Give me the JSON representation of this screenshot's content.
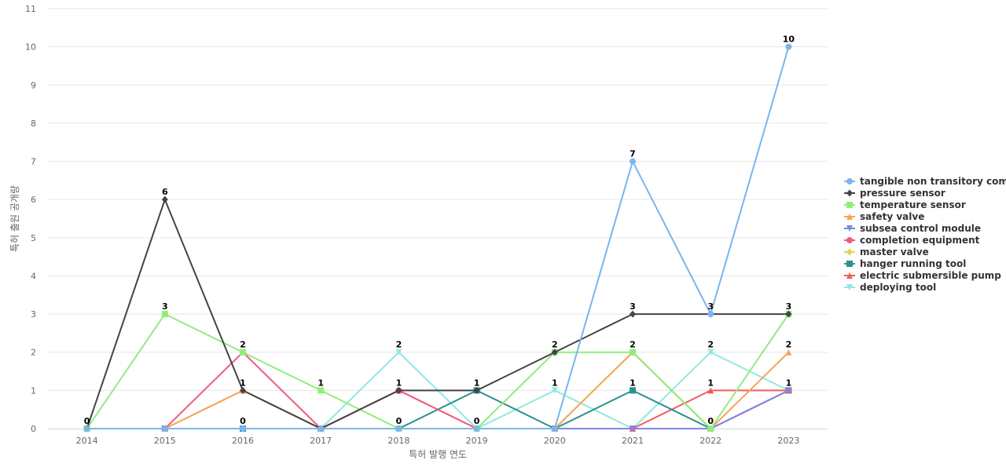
{
  "chart_data": {
    "type": "line",
    "xlabel": "특허 발행 연도",
    "ylabel": "특허 출원 공개량",
    "ylim": [
      0,
      11
    ],
    "yticks": [
      0,
      1,
      2,
      3,
      4,
      5,
      6,
      7,
      8,
      9,
      10,
      11
    ],
    "categories": [
      "2014",
      "2015",
      "2016",
      "2017",
      "2018",
      "2019",
      "2020",
      "2021",
      "2022",
      "2023"
    ],
    "grid": true,
    "legend_position": "right",
    "series": [
      {
        "name": "tangible non transitory com...",
        "color": "#7cb5ec",
        "marker": "circle",
        "values": [
          0,
          0,
          0,
          0,
          0,
          0,
          0,
          7,
          3,
          10
        ],
        "labels": [
          false,
          false,
          false,
          false,
          false,
          false,
          false,
          true,
          true,
          true
        ]
      },
      {
        "name": "pressure sensor",
        "color": "#434348",
        "marker": "diamond",
        "values": [
          0,
          6,
          1,
          0,
          1,
          1,
          2,
          3,
          3,
          3
        ],
        "labels": [
          true,
          true,
          false,
          false,
          false,
          true,
          false,
          true,
          false,
          false
        ]
      },
      {
        "name": "temperature sensor",
        "color": "#90ed7d",
        "marker": "square",
        "values": [
          0,
          3,
          2,
          1,
          0,
          0,
          2,
          2,
          0,
          3
        ],
        "labels": [
          false,
          true,
          true,
          true,
          false,
          false,
          true,
          false,
          false,
          true
        ]
      },
      {
        "name": "safety valve",
        "color": "#f7a35c",
        "marker": "triangle",
        "values": [
          0,
          0,
          1,
          0,
          0,
          0,
          0,
          2,
          0,
          2
        ],
        "labels": [
          false,
          false,
          false,
          false,
          false,
          false,
          false,
          false,
          false,
          true
        ]
      },
      {
        "name": "subsea control module",
        "color": "#8085e9",
        "marker": "triangle-down",
        "values": [
          0,
          0,
          0,
          0,
          0,
          0,
          0,
          0,
          0,
          1
        ],
        "labels": [
          false,
          false,
          false,
          false,
          false,
          false,
          false,
          false,
          false,
          false
        ]
      },
      {
        "name": "completion equipment",
        "color": "#f15c80",
        "marker": "circle",
        "values": [
          0,
          0,
          2,
          0,
          1,
          0,
          0,
          0,
          0,
          1
        ],
        "labels": [
          false,
          false,
          false,
          false,
          false,
          false,
          false,
          false,
          false,
          false
        ]
      },
      {
        "name": "master valve",
        "color": "#e4d354",
        "marker": "diamond",
        "values": [
          0,
          0,
          1,
          0,
          0,
          0,
          0,
          2,
          0,
          1
        ],
        "labels": [
          false,
          false,
          true,
          false,
          false,
          false,
          false,
          true,
          false,
          false
        ]
      },
      {
        "name": "hanger running tool",
        "color": "#2b908f",
        "marker": "square",
        "values": [
          0,
          0,
          0,
          0,
          0,
          1,
          0,
          1,
          0,
          1
        ],
        "labels": [
          false,
          false,
          true,
          false,
          true,
          false,
          false,
          true,
          true,
          false
        ]
      },
      {
        "name": "electric submersible pump",
        "color": "#f45b5b",
        "marker": "triangle",
        "values": [
          0,
          0,
          0,
          0,
          1,
          0,
          0,
          0,
          1,
          1
        ],
        "labels": [
          false,
          false,
          false,
          false,
          true,
          false,
          false,
          false,
          true,
          false
        ]
      },
      {
        "name": "deploying tool",
        "color": "#91e8e1",
        "marker": "triangle-down",
        "values": [
          0,
          0,
          0,
          0,
          2,
          0,
          1,
          0,
          2,
          1
        ],
        "labels": [
          false,
          false,
          false,
          false,
          true,
          true,
          true,
          false,
          true,
          true
        ]
      }
    ]
  }
}
